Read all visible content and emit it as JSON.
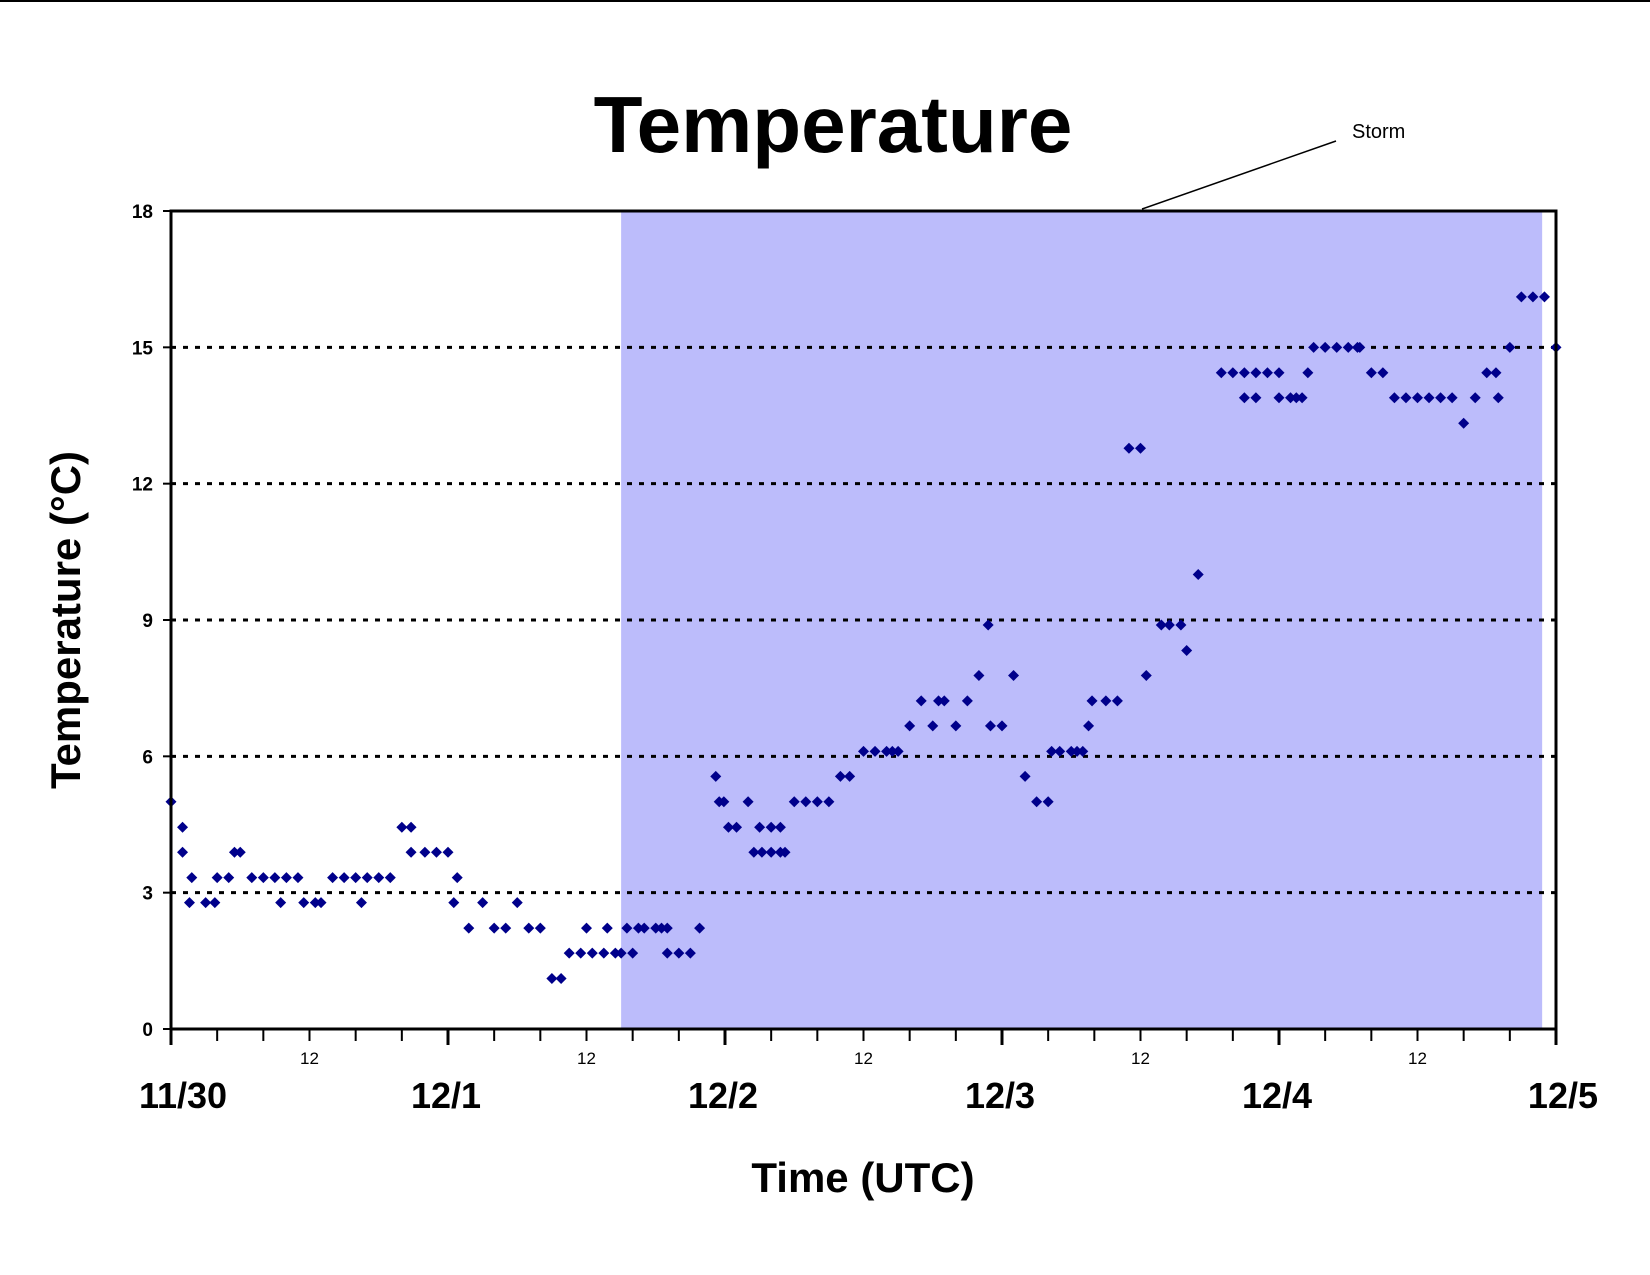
{
  "chart_data": {
    "type": "scatter",
    "title": "Temperature",
    "xlabel": "Time (UTC)",
    "ylabel": "Temperature (°C)",
    "ylim": [
      0,
      18
    ],
    "yticks": [
      0,
      3,
      6,
      9,
      12,
      15,
      18
    ],
    "x_unit": "hours since 11/30 00 UTC",
    "xlim": [
      0,
      120
    ],
    "day_labels": [
      {
        "label": "11/30",
        "hour": 0
      },
      {
        "label": "12/1",
        "hour": 24
      },
      {
        "label": "12/2",
        "hour": 48
      },
      {
        "label": "12/3",
        "hour": 72
      },
      {
        "label": "12/4",
        "hour": 96
      },
      {
        "label": "12/5",
        "hour": 120
      }
    ],
    "hour_labels": [
      {
        "label": "12",
        "hour": 12
      },
      {
        "label": "12",
        "hour": 36
      },
      {
        "label": "12",
        "hour": 60
      },
      {
        "label": "12",
        "hour": 84
      },
      {
        "label": "12",
        "hour": 108
      }
    ],
    "grid": "horizontal dotted at 3, 6, 9, 12, 15",
    "marker": {
      "shape": "diamond",
      "color": "#00008b"
    },
    "shaded_region": {
      "label": "Storm",
      "x_start": 39,
      "x_end": 118.8,
      "color": "#bcbcfb"
    },
    "points": [
      [
        0.0,
        5.0
      ],
      [
        1.0,
        4.44
      ],
      [
        1.0,
        3.89
      ],
      [
        1.8,
        3.33
      ],
      [
        1.6,
        2.78
      ],
      [
        3.0,
        2.78
      ],
      [
        3.8,
        2.78
      ],
      [
        4.0,
        3.33
      ],
      [
        5.0,
        3.33
      ],
      [
        5.5,
        3.89
      ],
      [
        6.0,
        3.89
      ],
      [
        7.0,
        3.33
      ],
      [
        8.0,
        3.33
      ],
      [
        9.0,
        3.33
      ],
      [
        9.5,
        2.78
      ],
      [
        10.0,
        3.33
      ],
      [
        11.0,
        3.33
      ],
      [
        11.5,
        2.78
      ],
      [
        12.5,
        2.78
      ],
      [
        13.0,
        2.78
      ],
      [
        14.0,
        3.33
      ],
      [
        15.0,
        3.33
      ],
      [
        16.0,
        3.33
      ],
      [
        16.5,
        2.78
      ],
      [
        17.0,
        3.33
      ],
      [
        18.0,
        3.33
      ],
      [
        19.0,
        3.33
      ],
      [
        20.0,
        4.44
      ],
      [
        20.8,
        4.44
      ],
      [
        20.8,
        3.89
      ],
      [
        22.0,
        3.89
      ],
      [
        23.0,
        3.89
      ],
      [
        24.0,
        3.89
      ],
      [
        24.5,
        2.78
      ],
      [
        24.8,
        3.33
      ],
      [
        25.8,
        2.22
      ],
      [
        27.0,
        2.78
      ],
      [
        28.0,
        2.22
      ],
      [
        29.0,
        2.22
      ],
      [
        30.0,
        2.78
      ],
      [
        31.0,
        2.22
      ],
      [
        32.0,
        2.22
      ],
      [
        33.0,
        1.11
      ],
      [
        33.8,
        1.11
      ],
      [
        34.5,
        1.67
      ],
      [
        35.5,
        1.67
      ],
      [
        36.0,
        2.22
      ],
      [
        36.5,
        1.67
      ],
      [
        37.5,
        1.67
      ],
      [
        37.8,
        2.22
      ],
      [
        38.5,
        1.67
      ],
      [
        39.0,
        1.67
      ],
      [
        39.5,
        2.22
      ],
      [
        40.0,
        1.67
      ],
      [
        40.5,
        2.22
      ],
      [
        41.0,
        2.22
      ],
      [
        42.0,
        2.22
      ],
      [
        42.5,
        2.22
      ],
      [
        43.0,
        2.22
      ],
      [
        43.0,
        1.67
      ],
      [
        44.0,
        1.67
      ],
      [
        45.0,
        1.67
      ],
      [
        45.8,
        2.22
      ],
      [
        47.2,
        5.56
      ],
      [
        47.5,
        5.0
      ],
      [
        47.9,
        5.0
      ],
      [
        48.3,
        4.44
      ],
      [
        49.0,
        4.44
      ],
      [
        50.0,
        5.0
      ],
      [
        50.5,
        3.89
      ],
      [
        51.0,
        4.44
      ],
      [
        51.2,
        3.89
      ],
      [
        52.0,
        4.44
      ],
      [
        52.0,
        3.89
      ],
      [
        52.8,
        4.44
      ],
      [
        52.8,
        3.89
      ],
      [
        53.2,
        3.89
      ],
      [
        54.0,
        5.0
      ],
      [
        55.0,
        5.0
      ],
      [
        56.0,
        5.0
      ],
      [
        57.0,
        5.0
      ],
      [
        58.0,
        5.56
      ],
      [
        58.8,
        5.56
      ],
      [
        60.0,
        6.11
      ],
      [
        61.0,
        6.11
      ],
      [
        62.0,
        6.11
      ],
      [
        62.5,
        6.11
      ],
      [
        63.0,
        6.11
      ],
      [
        64.0,
        6.67
      ],
      [
        65.0,
        7.22
      ],
      [
        66.0,
        6.67
      ],
      [
        66.5,
        7.22
      ],
      [
        67.0,
        7.22
      ],
      [
        68.0,
        6.67
      ],
      [
        69.0,
        7.22
      ],
      [
        70.0,
        7.78
      ],
      [
        70.8,
        8.89
      ],
      [
        71.0,
        6.67
      ],
      [
        72.0,
        6.67
      ],
      [
        73.0,
        7.78
      ],
      [
        74.0,
        5.56
      ],
      [
        75.0,
        5.0
      ],
      [
        76.0,
        5.0
      ],
      [
        76.3,
        6.11
      ],
      [
        77.0,
        6.11
      ],
      [
        78.0,
        6.11
      ],
      [
        78.5,
        6.11
      ],
      [
        79.0,
        6.11
      ],
      [
        79.5,
        6.67
      ],
      [
        79.8,
        7.22
      ],
      [
        81.0,
        7.22
      ],
      [
        82.0,
        7.22
      ],
      [
        83.0,
        12.78
      ],
      [
        84.0,
        12.78
      ],
      [
        84.5,
        7.78
      ],
      [
        85.8,
        8.89
      ],
      [
        86.5,
        8.89
      ],
      [
        87.5,
        8.89
      ],
      [
        88.0,
        8.33
      ],
      [
        89.0,
        10.0
      ],
      [
        91.0,
        14.44
      ],
      [
        92.0,
        14.44
      ],
      [
        93.0,
        14.44
      ],
      [
        93.0,
        13.89
      ],
      [
        94.0,
        13.89
      ],
      [
        94.0,
        14.44
      ],
      [
        95.0,
        14.44
      ],
      [
        96.0,
        14.44
      ],
      [
        96.0,
        13.89
      ],
      [
        97.0,
        13.89
      ],
      [
        97.5,
        13.89
      ],
      [
        98.0,
        13.89
      ],
      [
        98.5,
        14.44
      ],
      [
        99.0,
        15.0
      ],
      [
        100.0,
        15.0
      ],
      [
        101.0,
        15.0
      ],
      [
        102.0,
        15.0
      ],
      [
        102.8,
        15.0
      ],
      [
        103.0,
        15.0
      ],
      [
        104.0,
        14.44
      ],
      [
        105.0,
        14.44
      ],
      [
        106.0,
        13.89
      ],
      [
        107.0,
        13.89
      ],
      [
        108.0,
        13.89
      ],
      [
        109.0,
        13.89
      ],
      [
        110.0,
        13.89
      ],
      [
        111.0,
        13.89
      ],
      [
        112.0,
        13.33
      ],
      [
        113.0,
        13.89
      ],
      [
        114.0,
        14.44
      ],
      [
        114.8,
        14.44
      ],
      [
        115.0,
        13.89
      ],
      [
        116.0,
        15.0
      ],
      [
        117.0,
        16.11
      ],
      [
        118.0,
        16.11
      ],
      [
        119.0,
        16.11
      ],
      [
        120.0,
        15.0
      ]
    ]
  }
}
